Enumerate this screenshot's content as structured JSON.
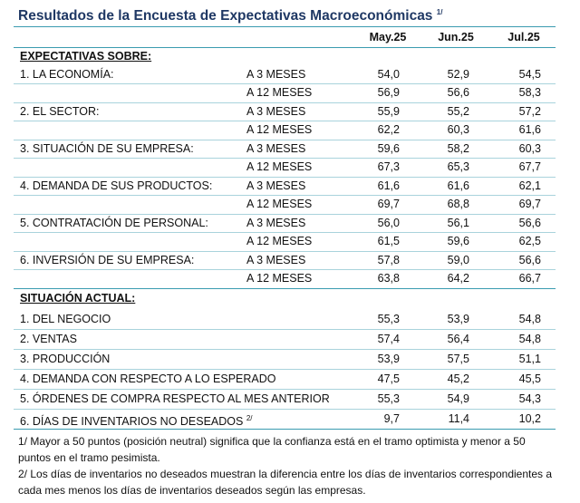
{
  "header": {
    "title": "Resultados de la Encuesta de Expectativas Macroeconómicas",
    "title_note": "1/"
  },
  "table": {
    "columns": [
      "May.25",
      "Jun.25",
      "Jul.25"
    ],
    "expectations": {
      "title": "EXPECTATIVAS SOBRE:",
      "groups": [
        {
          "label": "1. LA ECONOMÍA:",
          "rows": [
            {
              "horizon": "A 3 MESES",
              "values": [
                "54,0",
                "52,9",
                "54,5"
              ]
            },
            {
              "horizon": "A 12 MESES",
              "values": [
                "56,9",
                "56,6",
                "58,3"
              ]
            }
          ]
        },
        {
          "label": "2. EL SECTOR:",
          "rows": [
            {
              "horizon": "A 3 MESES",
              "values": [
                "55,9",
                "55,2",
                "57,2"
              ]
            },
            {
              "horizon": "A 12 MESES",
              "values": [
                "62,2",
                "60,3",
                "61,6"
              ]
            }
          ]
        },
        {
          "label": "3. SITUACIÓN DE SU EMPRESA:",
          "rows": [
            {
              "horizon": "A 3 MESES",
              "values": [
                "59,6",
                "58,2",
                "60,3"
              ]
            },
            {
              "horizon": "A 12 MESES",
              "values": [
                "67,3",
                "65,3",
                "67,7"
              ]
            }
          ]
        },
        {
          "label": "4. DEMANDA DE SUS PRODUCTOS:",
          "rows": [
            {
              "horizon": "A 3 MESES",
              "values": [
                "61,6",
                "61,6",
                "62,1"
              ]
            },
            {
              "horizon": "A 12 MESES",
              "values": [
                "69,7",
                "68,8",
                "69,7"
              ]
            }
          ]
        },
        {
          "label": "5. CONTRATACIÓN DE PERSONAL:",
          "rows": [
            {
              "horizon": "A 3 MESES",
              "values": [
                "56,0",
                "56,1",
                "56,6"
              ]
            },
            {
              "horizon": "A 12 MESES",
              "values": [
                "61,5",
                "59,6",
                "62,5"
              ]
            }
          ]
        },
        {
          "label": "6. INVERSIÓN DE SU EMPRESA:",
          "rows": [
            {
              "horizon": "A 3 MESES",
              "values": [
                "57,8",
                "59,0",
                "56,6"
              ]
            },
            {
              "horizon": "A 12 MESES",
              "values": [
                "63,8",
                "64,2",
                "66,7"
              ]
            }
          ]
        }
      ]
    },
    "current": {
      "title": "SITUACIÓN ACTUAL:",
      "rows": [
        {
          "label": "1. DEL NEGOCIO",
          "values": [
            "55,3",
            "53,9",
            "54,8"
          ]
        },
        {
          "label": "2. VENTAS",
          "values": [
            "57,4",
            "56,4",
            "54,8"
          ]
        },
        {
          "label": "3. PRODUCCIÓN",
          "values": [
            "53,9",
            "57,5",
            "51,1"
          ]
        },
        {
          "label": "4. DEMANDA CON RESPECTO A LO ESPERADO",
          "values": [
            "47,5",
            "45,2",
            "45,5"
          ]
        },
        {
          "label": "5. ÓRDENES DE COMPRA RESPECTO AL MES ANTERIOR",
          "values": [
            "55,3",
            "54,9",
            "54,3"
          ]
        },
        {
          "label": "6. DÍAS DE INVENTARIOS NO DESEADOS",
          "note": "2/",
          "values": [
            "9,7",
            "11,4",
            "10,2"
          ]
        }
      ]
    }
  },
  "footnotes": [
    "1/ Mayor a 50 puntos (posición neutral) significa que la confianza está en el tramo optimista y menor a 50 puntos en el tramo pesimista.",
    "2/ Los días de inventarios no deseados muestran la diferencia entre los días de inventarios correspondientes a cada mes menos los días de inventarios deseados según las empresas."
  ]
}
